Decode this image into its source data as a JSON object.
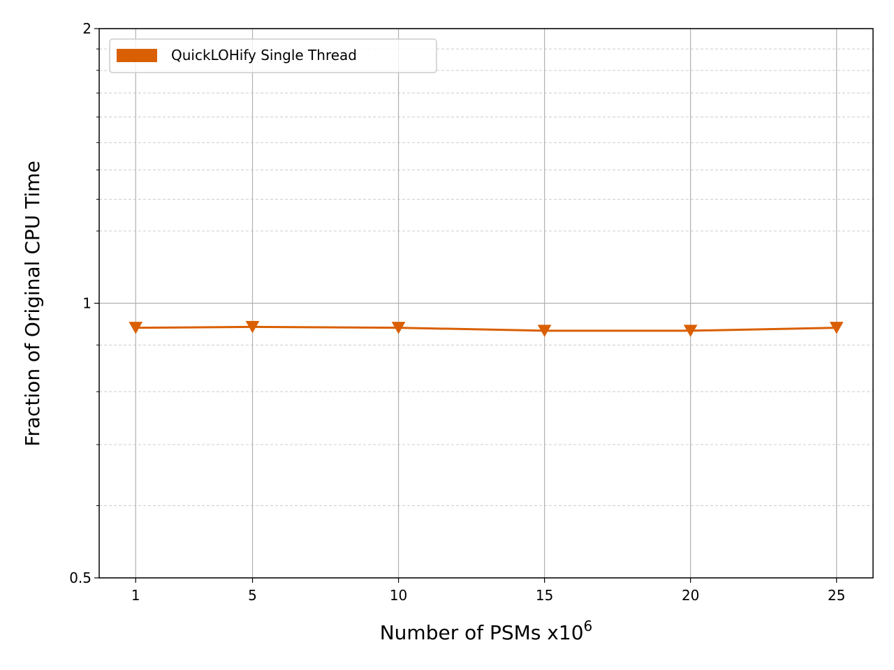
{
  "chart_data": {
    "type": "line",
    "xlabel": "Number of PSMs x10",
    "xlabel_superscript": "6",
    "ylabel": "Fraction of Original CPU Time",
    "y_scale": "log",
    "ylim": [
      0.5,
      2
    ],
    "y_ticks": [
      {
        "value": 0.5,
        "label": "0.5"
      },
      {
        "value": 1,
        "label": "1"
      },
      {
        "value": 2,
        "label": "2"
      }
    ],
    "y_minor_ticks": [
      0.6,
      0.7,
      0.8,
      0.9,
      1.2,
      1.3,
      1.4,
      1.5,
      1.6,
      1.7,
      1.8,
      1.9
    ],
    "x_ticks": [
      1,
      5,
      10,
      15,
      20,
      25
    ],
    "xlim": [
      -0.25,
      26.25
    ],
    "grid": true,
    "legend_position": "top-left",
    "series": [
      {
        "name": "QuickLOHify Single Thread",
        "color": "#d95f02",
        "marker": "triangle-down",
        "x": [
          1,
          5,
          10,
          15,
          20,
          25
        ],
        "y": [
          0.94,
          0.942,
          0.94,
          0.933,
          0.933,
          0.94
        ]
      }
    ]
  }
}
